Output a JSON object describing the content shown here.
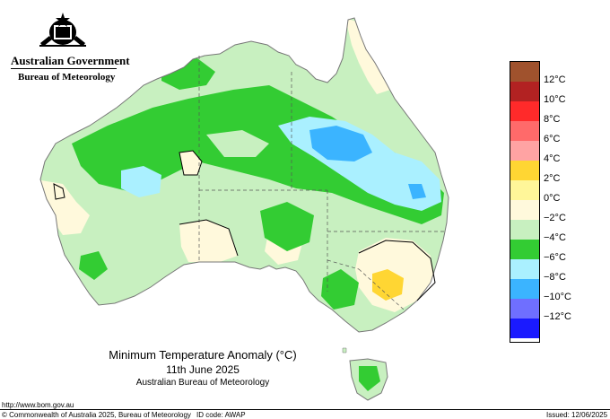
{
  "header": {
    "government": "Australian Government",
    "agency": "Bureau of Meteorology"
  },
  "map": {
    "title": "Minimum Temperature Anomaly (°C)",
    "date": "11th June 2025",
    "source": "Australian Bureau of Meteorology"
  },
  "legend": {
    "labels": [
      "12°C",
      "10°C",
      "8°C",
      "6°C",
      "4°C",
      "2°C",
      "0°C",
      "−2°C",
      "−4°C",
      "−6°C",
      "−8°C",
      "−10°C",
      "−12°C"
    ],
    "colors": [
      "#a0522d",
      "#b22222",
      "#ff2a2a",
      "#ff6a6a",
      "#ffa3a3",
      "#ffd633",
      "#fff699",
      "#fff9dc",
      "#c8f0c0",
      "#33cc33",
      "#aaf0ff",
      "#3bb4ff",
      "#6f6fff",
      "#1a1aff"
    ]
  },
  "footer": {
    "url": "http://www.bom.gov.au",
    "copyright": "© Commonwealth of Australia 2025, Bureau of Meteorology",
    "id_code": "ID code: AWAP",
    "issued": "Issued: 12/06/2025"
  }
}
